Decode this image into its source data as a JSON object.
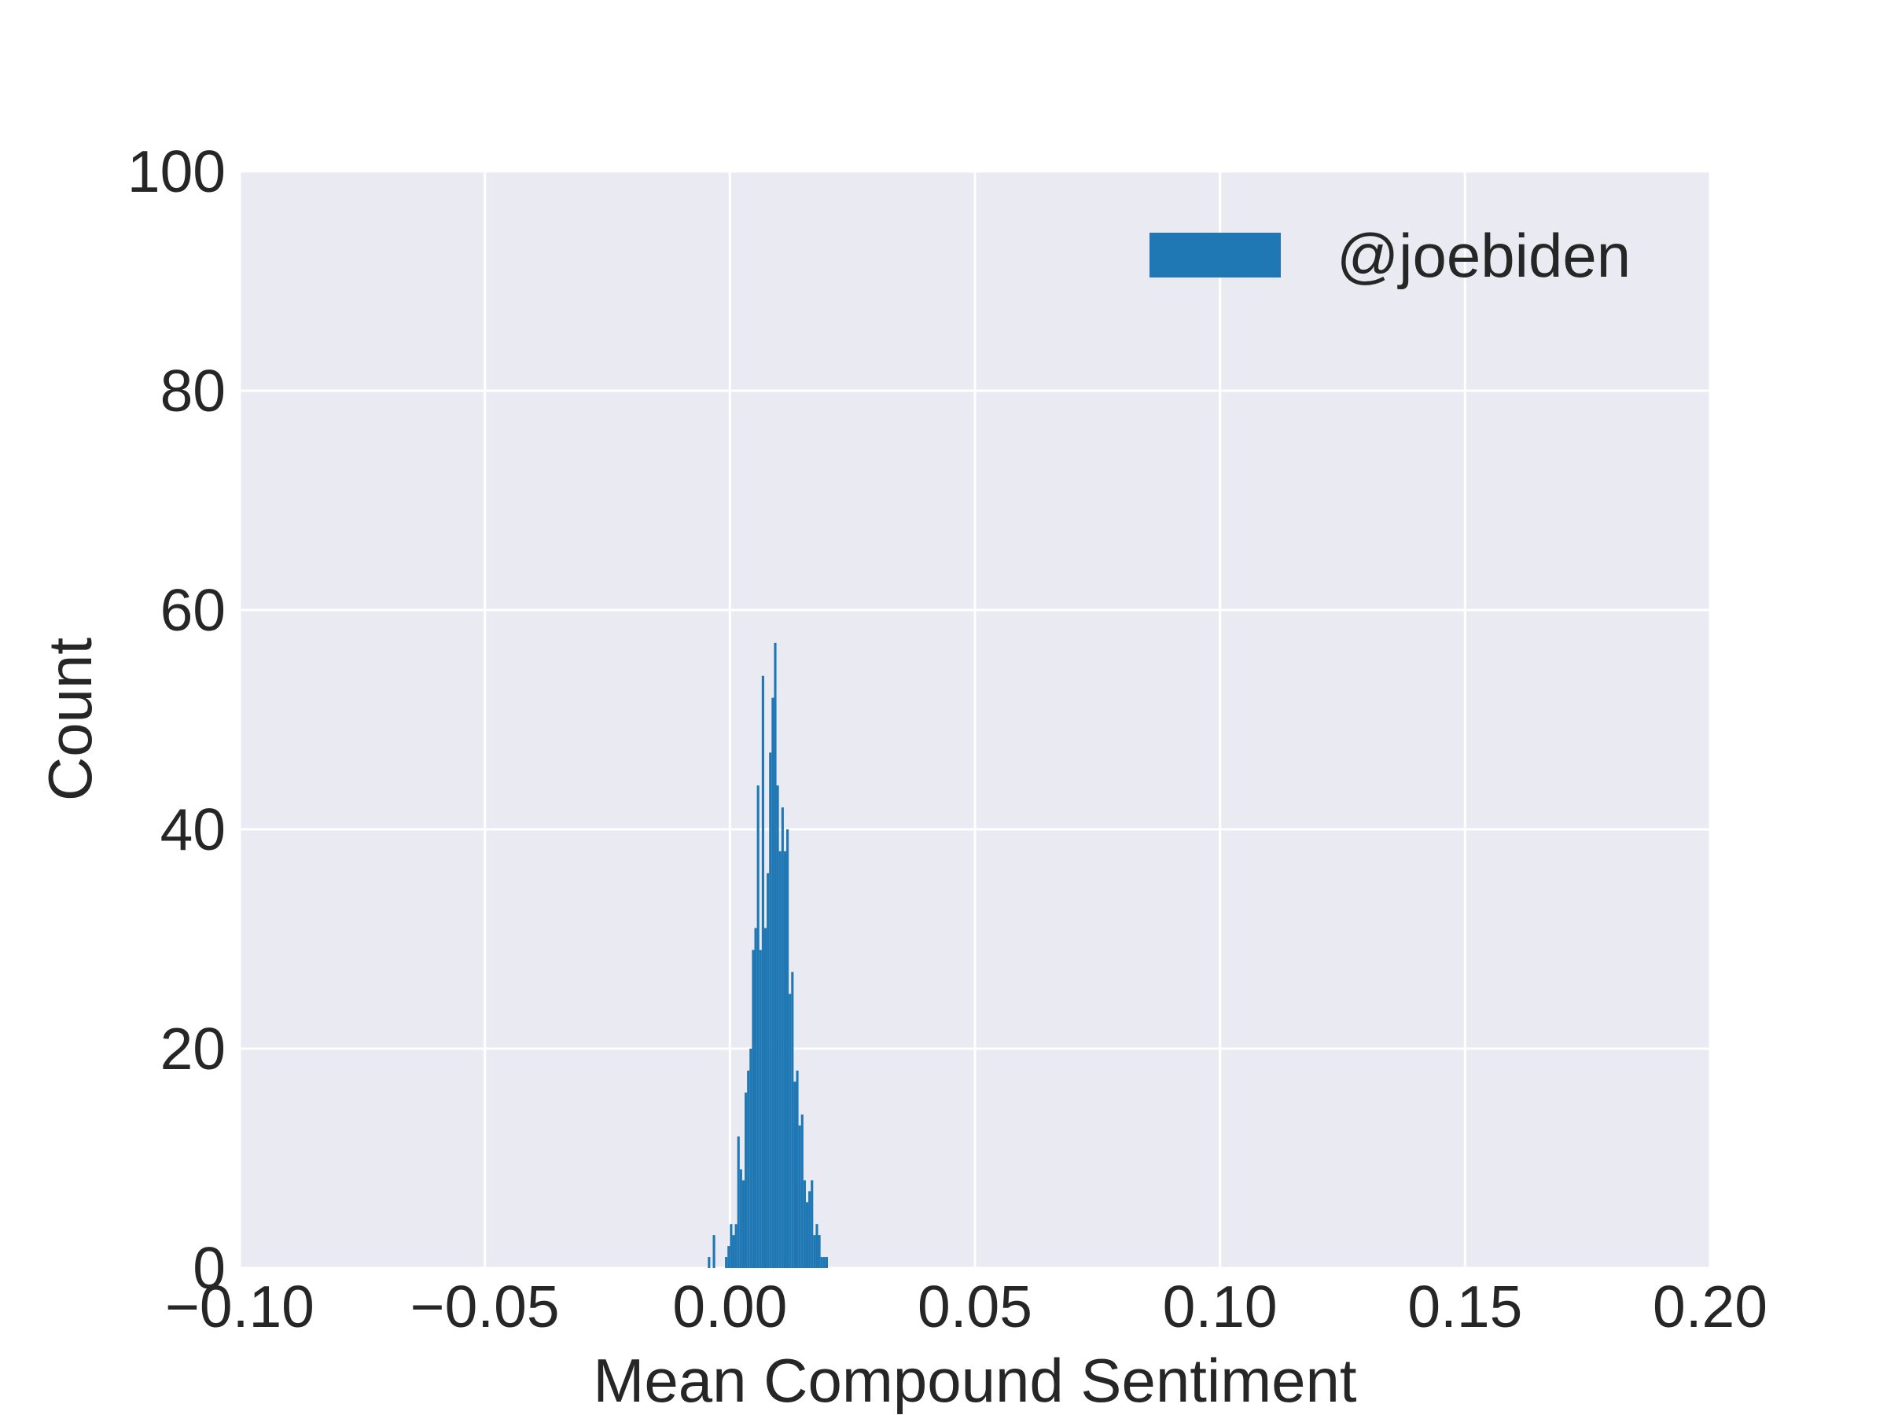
{
  "chart_data": {
    "type": "bar",
    "xlabel": "Mean Compound Sentiment",
    "ylabel": "Count",
    "xlim": [
      -0.1,
      0.2
    ],
    "ylim": [
      0,
      100
    ],
    "xticks": [
      -0.1,
      -0.05,
      0.0,
      0.05,
      0.1,
      0.15,
      0.2
    ],
    "xtick_labels": [
      "−0.10",
      "−0.05",
      "0.00",
      "0.05",
      "0.10",
      "0.15",
      "0.20"
    ],
    "yticks": [
      0,
      20,
      40,
      60,
      80,
      100
    ],
    "ytick_labels": [
      "0",
      "20",
      "40",
      "60",
      "80",
      "100"
    ],
    "grid": true,
    "legend": {
      "position": "top-right",
      "entries": [
        "@joebiden"
      ]
    },
    "bar_color": "#1f77b4",
    "bin_width": 0.0005,
    "series": [
      {
        "name": "@joebiden",
        "x": [
          -0.0045,
          -0.0035,
          -0.001,
          -0.0005,
          0.0,
          0.0005,
          0.001,
          0.0015,
          0.002,
          0.0025,
          0.003,
          0.0035,
          0.004,
          0.0045,
          0.005,
          0.0055,
          0.006,
          0.0065,
          0.007,
          0.0075,
          0.008,
          0.0085,
          0.009,
          0.0095,
          0.01,
          0.0105,
          0.011,
          0.0115,
          0.012,
          0.0125,
          0.013,
          0.0135,
          0.014,
          0.0145,
          0.015,
          0.0155,
          0.016,
          0.0165,
          0.017,
          0.0175,
          0.018,
          0.0185,
          0.019,
          0.0195,
          0.02,
          0.0205,
          0.021,
          0.0215
        ],
        "values": [
          1,
          3,
          1,
          2,
          4,
          3,
          4,
          12,
          9,
          8,
          16,
          18,
          20,
          29,
          31,
          44,
          29,
          54,
          31,
          36,
          47,
          52,
          57,
          44,
          38,
          42,
          38,
          40,
          25,
          27,
          17,
          18,
          13,
          14,
          8,
          6,
          7,
          8,
          3,
          4,
          3,
          1,
          1,
          1,
          0,
          0,
          0,
          0
        ]
      }
    ]
  }
}
